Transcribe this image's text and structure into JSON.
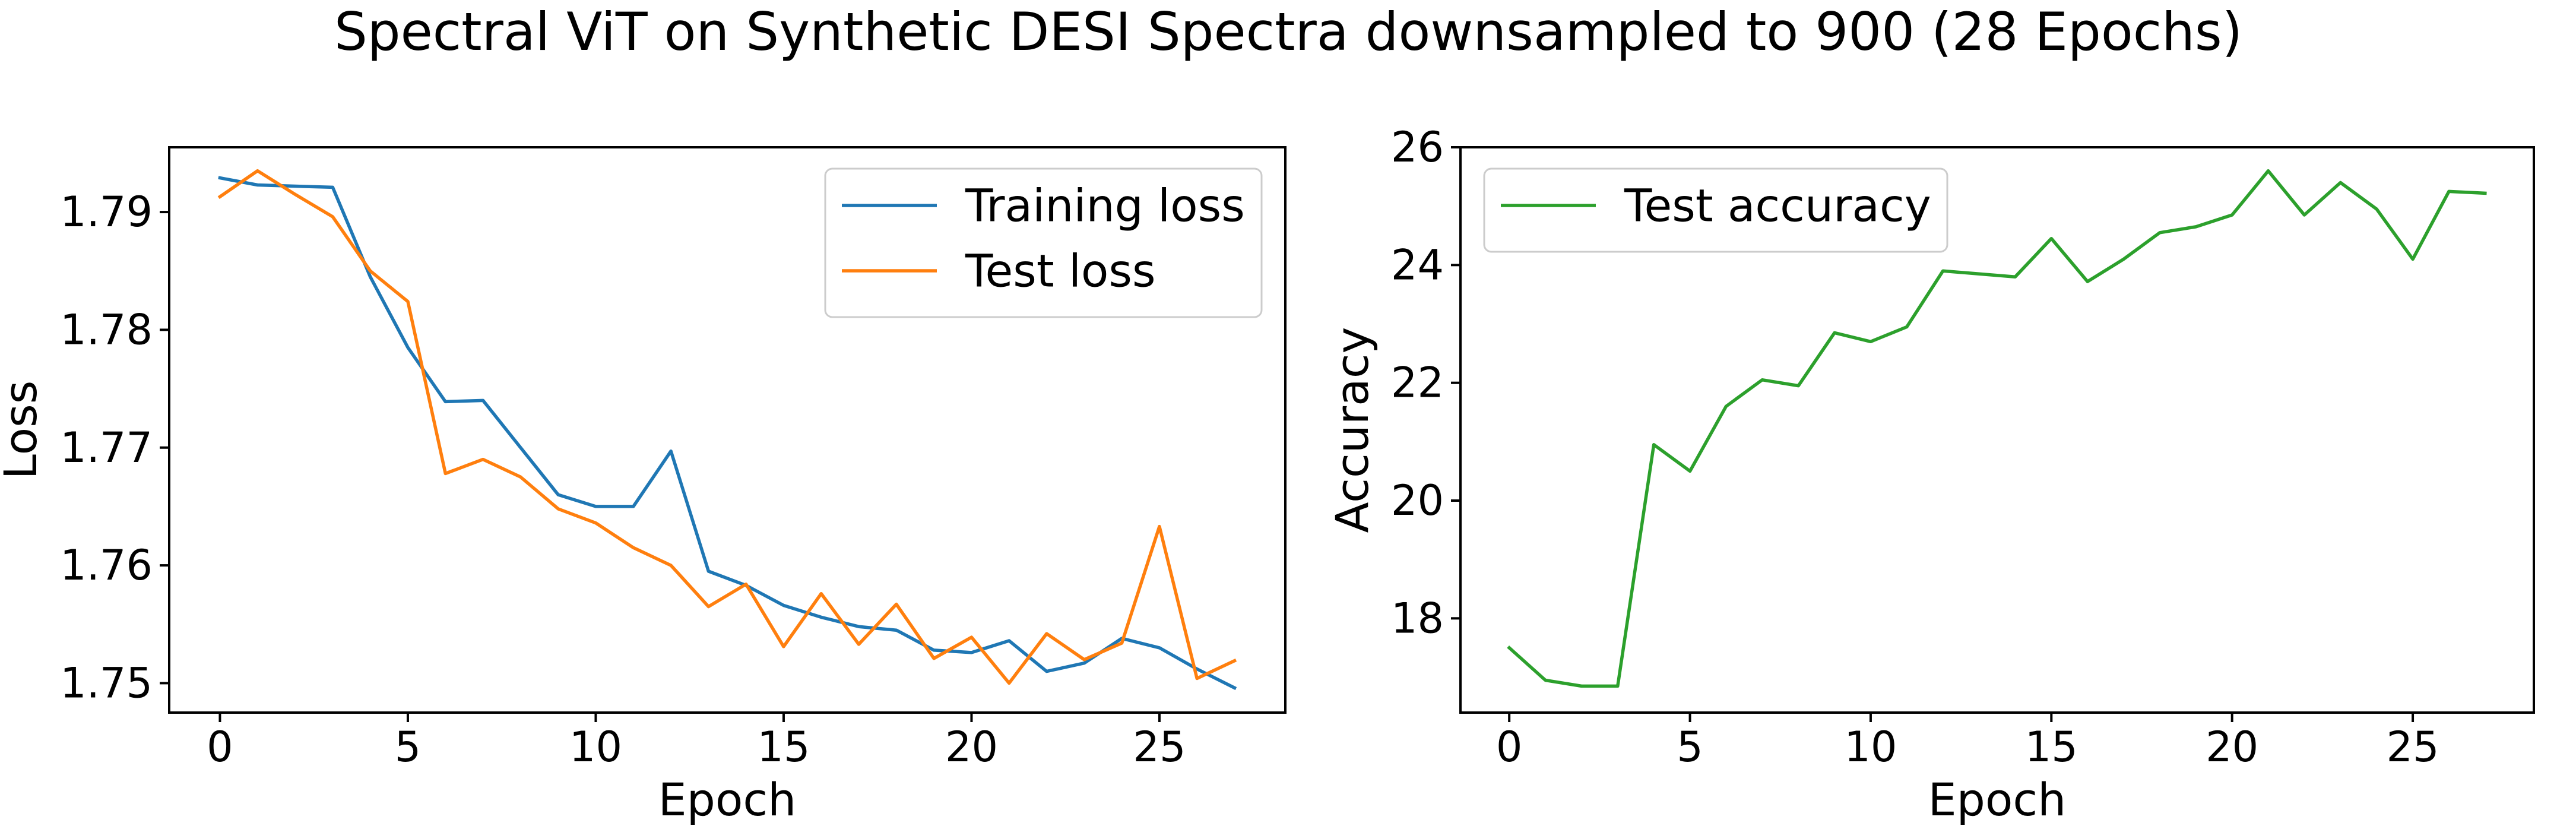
{
  "figure": {
    "suptitle": "Spectral ViT on Synthetic DESI Spectra downsampled to 900 (28 Epochs)"
  },
  "chart_data": [
    {
      "type": "line",
      "xlabel": "Epoch",
      "ylabel": "Loss",
      "xlim": [
        -1.35,
        28.35
      ],
      "ylim": [
        1.7475,
        1.7955
      ],
      "xticks": [
        0,
        5,
        10,
        15,
        20,
        25
      ],
      "yticks": [
        1.75,
        1.76,
        1.77,
        1.78,
        1.79
      ],
      "ytick_labels": [
        "1.75",
        "1.76",
        "1.77",
        "1.78",
        "1.79"
      ],
      "legend_position": "upper right",
      "grid": false,
      "x": [
        0,
        1,
        2,
        3,
        4,
        5,
        6,
        7,
        8,
        9,
        10,
        11,
        12,
        13,
        14,
        15,
        16,
        17,
        18,
        19,
        20,
        21,
        22,
        23,
        24,
        25,
        26,
        27
      ],
      "series": [
        {
          "name": "Training loss",
          "color": "#1f77b4",
          "values": [
            1.7929,
            1.7923,
            1.7922,
            1.7921,
            1.7845,
            1.7785,
            1.7739,
            1.774,
            1.77,
            1.766,
            1.765,
            1.765,
            1.7697,
            1.7595,
            1.7583,
            1.7566,
            1.7556,
            1.7548,
            1.7545,
            1.7528,
            1.7526,
            1.7536,
            1.751,
            1.7517,
            1.7538,
            1.753,
            1.7512,
            1.7496
          ]
        },
        {
          "name": "Test loss",
          "color": "#ff7f0e",
          "values": [
            1.7913,
            1.7935,
            1.7915,
            1.7896,
            1.785,
            1.7824,
            1.7678,
            1.769,
            1.7675,
            1.7648,
            1.7636,
            1.7615,
            1.76,
            1.7565,
            1.7584,
            1.7531,
            1.7576,
            1.7533,
            1.7567,
            1.7521,
            1.7539,
            1.75,
            1.7542,
            1.752,
            1.7534,
            1.7633,
            1.7504,
            1.7519
          ]
        }
      ]
    },
    {
      "type": "line",
      "xlabel": "Epoch",
      "ylabel": "Accuracy",
      "xlim": [
        -1.35,
        28.35
      ],
      "ylim": [
        16.4,
        26.0
      ],
      "xticks": [
        0,
        5,
        10,
        15,
        20,
        25
      ],
      "yticks": [
        18,
        20,
        22,
        24,
        26
      ],
      "ytick_labels": [
        "18",
        "20",
        "22",
        "24",
        "26"
      ],
      "legend_position": "upper left",
      "grid": false,
      "x": [
        0,
        1,
        2,
        3,
        4,
        5,
        6,
        7,
        8,
        9,
        10,
        11,
        12,
        13,
        14,
        15,
        16,
        17,
        18,
        19,
        20,
        21,
        22,
        23,
        24,
        25,
        26,
        27
      ],
      "series": [
        {
          "name": "Test accuracy",
          "color": "#2ca02c",
          "values": [
            17.5,
            16.95,
            16.85,
            16.85,
            20.95,
            20.5,
            21.6,
            22.05,
            21.95,
            22.85,
            22.7,
            22.95,
            23.9,
            23.85,
            23.8,
            24.45,
            23.72,
            24.1,
            24.55,
            24.65,
            24.85,
            25.6,
            24.85,
            25.4,
            24.95,
            24.1,
            25.25,
            25.22
          ]
        }
      ]
    }
  ]
}
